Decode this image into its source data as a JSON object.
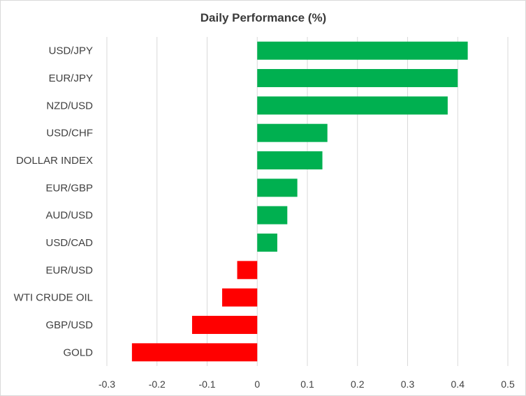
{
  "chart_data": {
    "type": "bar",
    "orientation": "horizontal",
    "title": "Daily Performance  (%)",
    "xlabel": "",
    "ylabel": "",
    "xlim": [
      -0.3,
      0.5
    ],
    "ticks": [
      -0.3,
      -0.2,
      -0.1,
      0,
      0.1,
      0.2,
      0.3,
      0.4,
      0.5
    ],
    "tick_labels": [
      "-0.3",
      "-0.2",
      "-0.1",
      "0",
      "0.1",
      "0.2",
      "0.3",
      "0.4",
      "0.5"
    ],
    "grid": true,
    "legend": "none",
    "categories": [
      "USD/JPY",
      "EUR/JPY",
      "NZD/USD",
      "USD/CHF",
      "DOLLAR INDEX",
      "EUR/GBP",
      "AUD/USD",
      "USD/CAD",
      "EUR/USD",
      "WTI CRUDE OIL",
      "GBP/USD",
      "GOLD"
    ],
    "values": [
      0.42,
      0.4,
      0.38,
      0.14,
      0.13,
      0.08,
      0.06,
      0.04,
      -0.04,
      -0.07,
      -0.13,
      -0.25
    ],
    "colors": {
      "positive": "#00b050",
      "negative": "#ff0000",
      "grid": "#d9d9d9"
    }
  }
}
